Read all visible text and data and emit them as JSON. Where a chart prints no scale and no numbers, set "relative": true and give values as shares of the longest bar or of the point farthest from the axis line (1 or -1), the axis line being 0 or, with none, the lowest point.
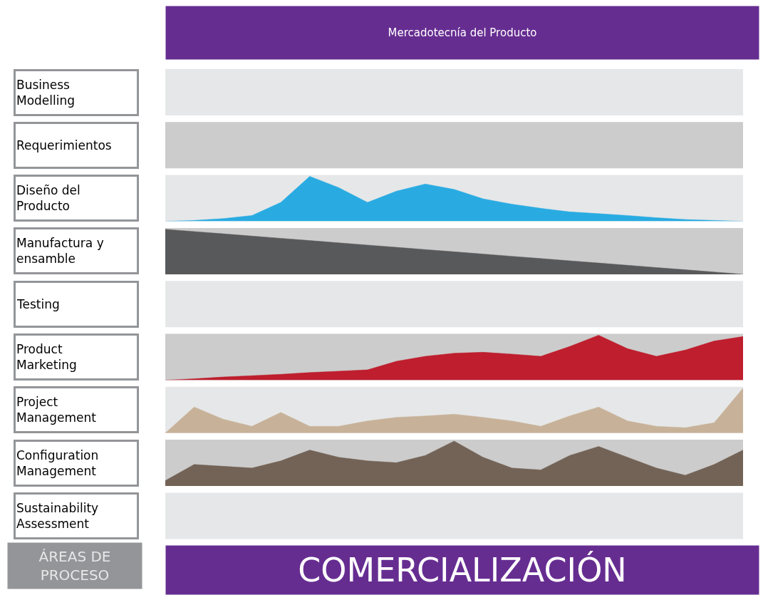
{
  "chart_data": [
    {
      "type": "other",
      "title": "Mercadotecnía del Producto",
      "ylabel": "Business Modelling"
    },
    {
      "type": "other",
      "ylabel": "Requerimientos"
    },
    {
      "type": "area",
      "ylabel": "Diseño del Producto",
      "relative": true,
      "categories": [
        null,
        null,
        null,
        null,
        null,
        null,
        null,
        null,
        null,
        null,
        null,
        null,
        null,
        null,
        null,
        null,
        null,
        null,
        null,
        null,
        null
      ],
      "series": [
        {
          "color": "#29abe2",
          "values": [
            0,
            0.02,
            0.06,
            0.13,
            0.42,
            1,
            0.75,
            0.42,
            0.67,
            0.83,
            0.71,
            0.5,
            0.38,
            0.29,
            0.21,
            0.17,
            0.13,
            0.08,
            0.04,
            0.02,
            0
          ]
        }
      ]
    },
    {
      "type": "area",
      "ylabel": "Manufactura y ensamble",
      "relative": true,
      "categories": [
        null,
        null,
        null,
        null,
        null,
        null,
        null,
        null,
        null,
        null,
        null,
        null,
        null,
        null,
        null,
        null,
        null,
        null,
        null,
        null,
        null
      ],
      "series": [
        {
          "color": "#58595b",
          "values": [
            1,
            0.95,
            0.9,
            0.85,
            0.8,
            0.75,
            0.7,
            0.65,
            0.6,
            0.55,
            0.5,
            0.45,
            0.4,
            0.35,
            0.3,
            0.25,
            0.2,
            0.15,
            0.1,
            0.05,
            0
          ]
        }
      ]
    },
    {
      "type": "other",
      "ylabel": "Testing"
    },
    {
      "type": "area",
      "ylabel": "Product Marketing",
      "relative": true,
      "categories": [
        null,
        null,
        null,
        null,
        null,
        null,
        null,
        null,
        null,
        null,
        null,
        null,
        null,
        null,
        null,
        null,
        null,
        null,
        null,
        null,
        null
      ],
      "series": [
        {
          "color": "#be1e2d",
          "values": [
            0,
            0.03,
            0.07,
            0.1,
            0.13,
            0.17,
            0.2,
            0.23,
            0.42,
            0.53,
            0.6,
            0.62,
            0.58,
            0.53,
            0.75,
            1,
            0.7,
            0.53,
            0.67,
            0.87,
            0.97
          ]
        }
      ]
    },
    {
      "type": "area",
      "ylabel": "Project Management",
      "relative": true,
      "categories": [
        null,
        null,
        null,
        null,
        null,
        null,
        null,
        null,
        null,
        null,
        null,
        null,
        null,
        null,
        null,
        null,
        null,
        null,
        null,
        null,
        null
      ],
      "series": [
        {
          "color": "#c7b299",
          "values": [
            0,
            0.58,
            0.31,
            0.15,
            0.46,
            0.15,
            0.15,
            0.27,
            0.35,
            0.38,
            0.42,
            0.35,
            0.27,
            0.15,
            0.38,
            0.58,
            0.27,
            0.15,
            0.12,
            0.23,
            1
          ]
        }
      ]
    },
    {
      "type": "area",
      "ylabel": "Configuration Management",
      "relative": true,
      "categories": [
        null,
        null,
        null,
        null,
        null,
        null,
        null,
        null,
        null,
        null,
        null,
        null,
        null,
        null,
        null,
        null,
        null,
        null,
        null,
        null,
        null
      ],
      "series": [
        {
          "color": "#736357",
          "values": [
            0.12,
            0.48,
            0.44,
            0.4,
            0.56,
            0.8,
            0.64,
            0.56,
            0.52,
            0.68,
            1,
            0.64,
            0.4,
            0.36,
            0.68,
            0.88,
            0.64,
            0.4,
            0.24,
            0.48,
            0.8
          ]
        }
      ]
    },
    {
      "type": "other",
      "ylabel": "Sustainability Assessment",
      "annotations": [
        "ÁREAS DE PROCESO",
        "COMERCIALIZACIÓN"
      ]
    }
  ]
}
